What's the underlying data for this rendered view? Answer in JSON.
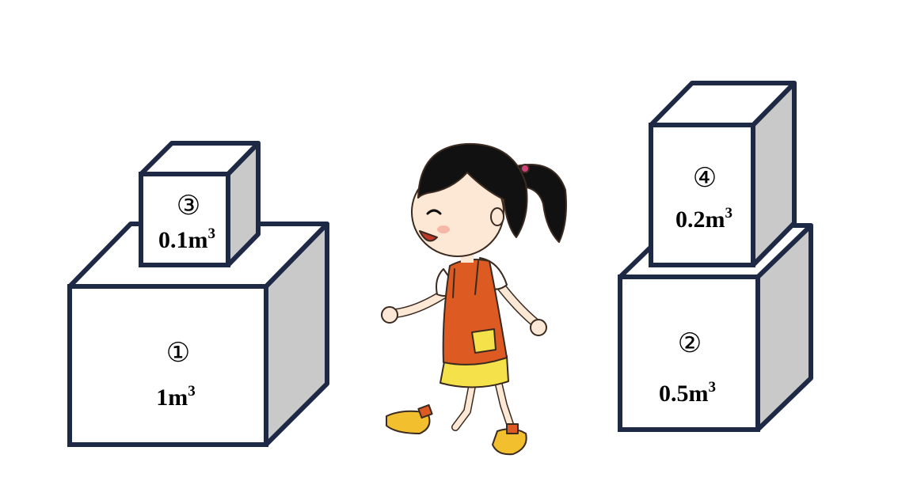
{
  "boxes": [
    {
      "number": "①",
      "volume": "1m",
      "exponent": "3"
    },
    {
      "number": "②",
      "volume": "0.5m",
      "exponent": "3"
    },
    {
      "number": "③",
      "volume": "0.1m",
      "exponent": "3"
    },
    {
      "number": "④",
      "volume": "0.2m",
      "exponent": "3"
    }
  ],
  "colors": {
    "outline": "#1e2a45",
    "front": "#ffffff",
    "side": "#c9c9c9",
    "apron": "#dd5a22",
    "skirt": "#f5e24a",
    "hair": "#111111",
    "skin": "#fde8d5",
    "shoes": "#f2bf2e"
  }
}
